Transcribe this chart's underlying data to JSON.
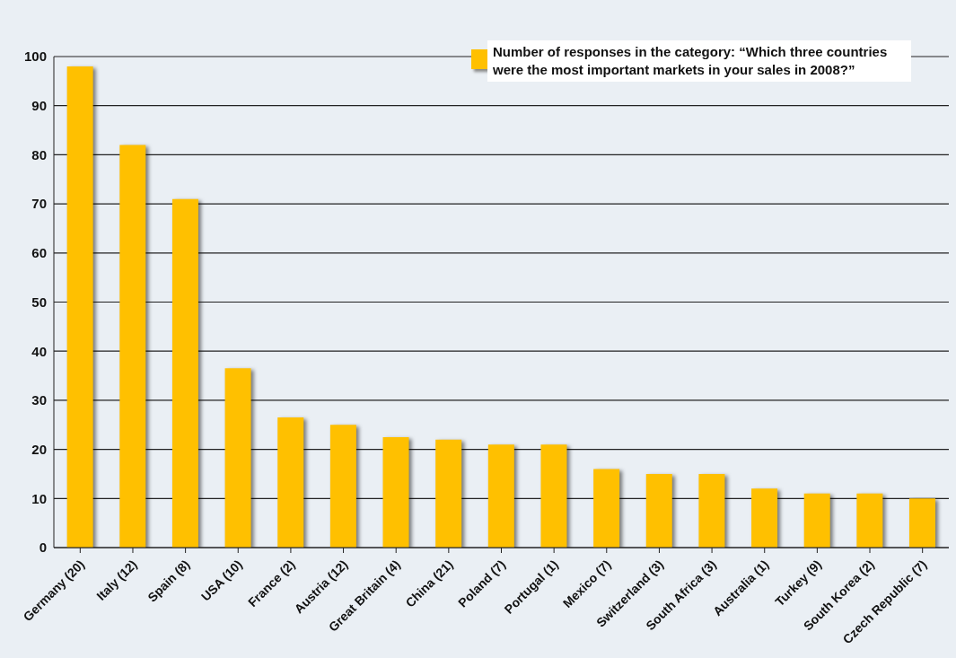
{
  "chart_data": {
    "type": "bar",
    "categories": [
      "Germany (20)",
      "Italy (12)",
      "Spain (8)",
      "USA (10)",
      "France (2)",
      "Austria (12)",
      "Great Britain (4)",
      "China (21)",
      "Poland (7)",
      "Portugal (1)",
      "Mexico (7)",
      "Switzerland (3)",
      "South Africa (3)",
      "Australia (1)",
      "Turkey (9)",
      "South Korea (2)",
      "Czech Republic (7)"
    ],
    "series": [
      {
        "name": "Number of responses in the category: “Which three countries were the most important markets in your sales in 2008?”",
        "color": "#ffc000",
        "values": [
          98,
          82,
          71,
          36.5,
          26.5,
          25,
          22.5,
          22,
          21,
          21,
          16,
          15,
          15,
          12,
          11,
          11,
          10
        ]
      }
    ],
    "ylim": [
      0,
      100
    ],
    "yticks": [
      0,
      10,
      20,
      30,
      40,
      50,
      60,
      70,
      80,
      90,
      100
    ],
    "grid": "y",
    "legend": "top right"
  }
}
